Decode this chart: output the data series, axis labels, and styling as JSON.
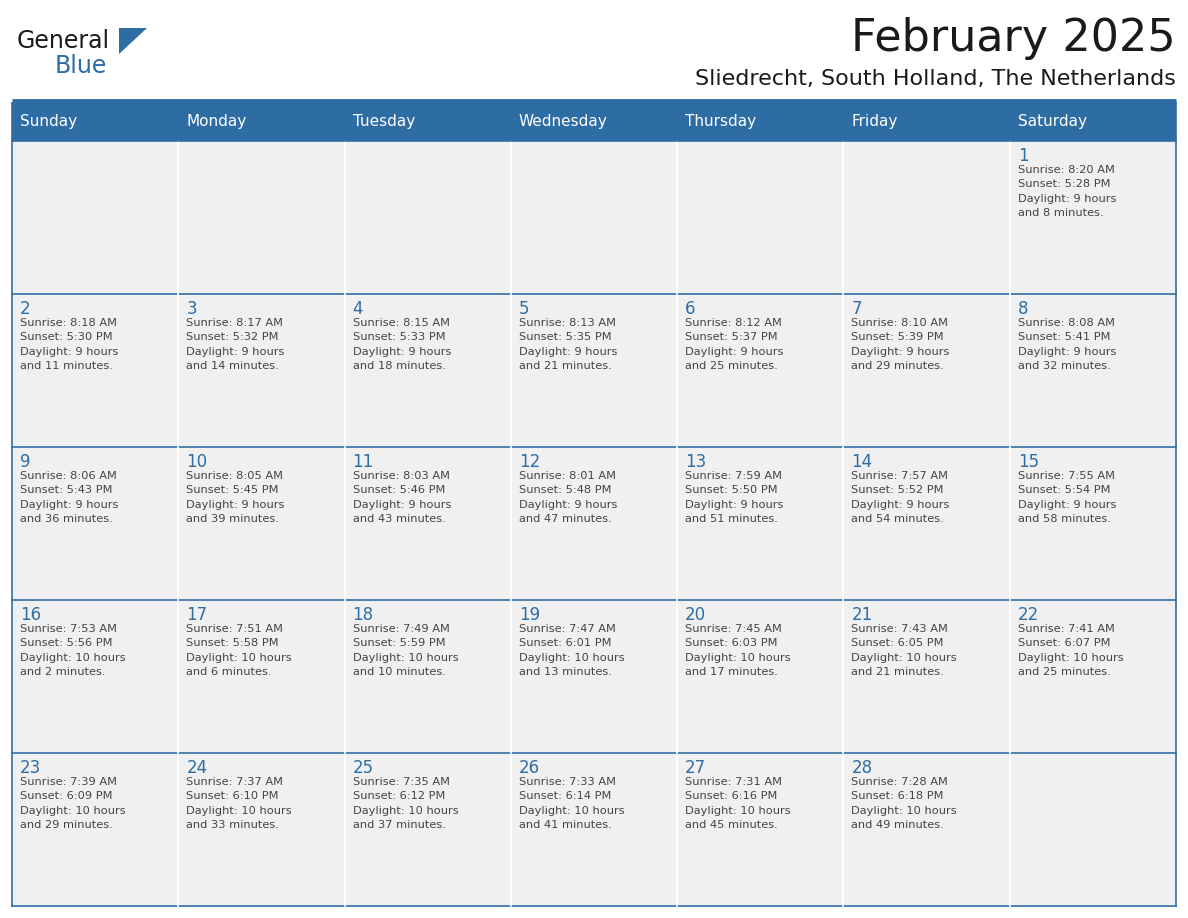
{
  "title": "February 2025",
  "subtitle": "Sliedrecht, South Holland, The Netherlands",
  "header_bg": "#2E6DA4",
  "header_text_color": "#FFFFFF",
  "cell_bg": "#F0F0F0",
  "border_color": "#2E6DA4",
  "title_color": "#1a1a1a",
  "subtitle_color": "#1a1a1a",
  "day_num_color": "#2E6DA4",
  "day_text_color": "#444444",
  "days_of_week": [
    "Sunday",
    "Monday",
    "Tuesday",
    "Wednesday",
    "Thursday",
    "Friday",
    "Saturday"
  ],
  "weeks": [
    [
      {
        "day": "",
        "info": ""
      },
      {
        "day": "",
        "info": ""
      },
      {
        "day": "",
        "info": ""
      },
      {
        "day": "",
        "info": ""
      },
      {
        "day": "",
        "info": ""
      },
      {
        "day": "",
        "info": ""
      },
      {
        "day": "1",
        "info": "Sunrise: 8:20 AM\nSunset: 5:28 PM\nDaylight: 9 hours\nand 8 minutes."
      }
    ],
    [
      {
        "day": "2",
        "info": "Sunrise: 8:18 AM\nSunset: 5:30 PM\nDaylight: 9 hours\nand 11 minutes."
      },
      {
        "day": "3",
        "info": "Sunrise: 8:17 AM\nSunset: 5:32 PM\nDaylight: 9 hours\nand 14 minutes."
      },
      {
        "day": "4",
        "info": "Sunrise: 8:15 AM\nSunset: 5:33 PM\nDaylight: 9 hours\nand 18 minutes."
      },
      {
        "day": "5",
        "info": "Sunrise: 8:13 AM\nSunset: 5:35 PM\nDaylight: 9 hours\nand 21 minutes."
      },
      {
        "day": "6",
        "info": "Sunrise: 8:12 AM\nSunset: 5:37 PM\nDaylight: 9 hours\nand 25 minutes."
      },
      {
        "day": "7",
        "info": "Sunrise: 8:10 AM\nSunset: 5:39 PM\nDaylight: 9 hours\nand 29 minutes."
      },
      {
        "day": "8",
        "info": "Sunrise: 8:08 AM\nSunset: 5:41 PM\nDaylight: 9 hours\nand 32 minutes."
      }
    ],
    [
      {
        "day": "9",
        "info": "Sunrise: 8:06 AM\nSunset: 5:43 PM\nDaylight: 9 hours\nand 36 minutes."
      },
      {
        "day": "10",
        "info": "Sunrise: 8:05 AM\nSunset: 5:45 PM\nDaylight: 9 hours\nand 39 minutes."
      },
      {
        "day": "11",
        "info": "Sunrise: 8:03 AM\nSunset: 5:46 PM\nDaylight: 9 hours\nand 43 minutes."
      },
      {
        "day": "12",
        "info": "Sunrise: 8:01 AM\nSunset: 5:48 PM\nDaylight: 9 hours\nand 47 minutes."
      },
      {
        "day": "13",
        "info": "Sunrise: 7:59 AM\nSunset: 5:50 PM\nDaylight: 9 hours\nand 51 minutes."
      },
      {
        "day": "14",
        "info": "Sunrise: 7:57 AM\nSunset: 5:52 PM\nDaylight: 9 hours\nand 54 minutes."
      },
      {
        "day": "15",
        "info": "Sunrise: 7:55 AM\nSunset: 5:54 PM\nDaylight: 9 hours\nand 58 minutes."
      }
    ],
    [
      {
        "day": "16",
        "info": "Sunrise: 7:53 AM\nSunset: 5:56 PM\nDaylight: 10 hours\nand 2 minutes."
      },
      {
        "day": "17",
        "info": "Sunrise: 7:51 AM\nSunset: 5:58 PM\nDaylight: 10 hours\nand 6 minutes."
      },
      {
        "day": "18",
        "info": "Sunrise: 7:49 AM\nSunset: 5:59 PM\nDaylight: 10 hours\nand 10 minutes."
      },
      {
        "day": "19",
        "info": "Sunrise: 7:47 AM\nSunset: 6:01 PM\nDaylight: 10 hours\nand 13 minutes."
      },
      {
        "day": "20",
        "info": "Sunrise: 7:45 AM\nSunset: 6:03 PM\nDaylight: 10 hours\nand 17 minutes."
      },
      {
        "day": "21",
        "info": "Sunrise: 7:43 AM\nSunset: 6:05 PM\nDaylight: 10 hours\nand 21 minutes."
      },
      {
        "day": "22",
        "info": "Sunrise: 7:41 AM\nSunset: 6:07 PM\nDaylight: 10 hours\nand 25 minutes."
      }
    ],
    [
      {
        "day": "23",
        "info": "Sunrise: 7:39 AM\nSunset: 6:09 PM\nDaylight: 10 hours\nand 29 minutes."
      },
      {
        "day": "24",
        "info": "Sunrise: 7:37 AM\nSunset: 6:10 PM\nDaylight: 10 hours\nand 33 minutes."
      },
      {
        "day": "25",
        "info": "Sunrise: 7:35 AM\nSunset: 6:12 PM\nDaylight: 10 hours\nand 37 minutes."
      },
      {
        "day": "26",
        "info": "Sunrise: 7:33 AM\nSunset: 6:14 PM\nDaylight: 10 hours\nand 41 minutes."
      },
      {
        "day": "27",
        "info": "Sunrise: 7:31 AM\nSunset: 6:16 PM\nDaylight: 10 hours\nand 45 minutes."
      },
      {
        "day": "28",
        "info": "Sunrise: 7:28 AM\nSunset: 6:18 PM\nDaylight: 10 hours\nand 49 minutes."
      },
      {
        "day": "",
        "info": ""
      }
    ]
  ],
  "fig_width": 11.88,
  "fig_height": 9.18,
  "dpi": 100
}
